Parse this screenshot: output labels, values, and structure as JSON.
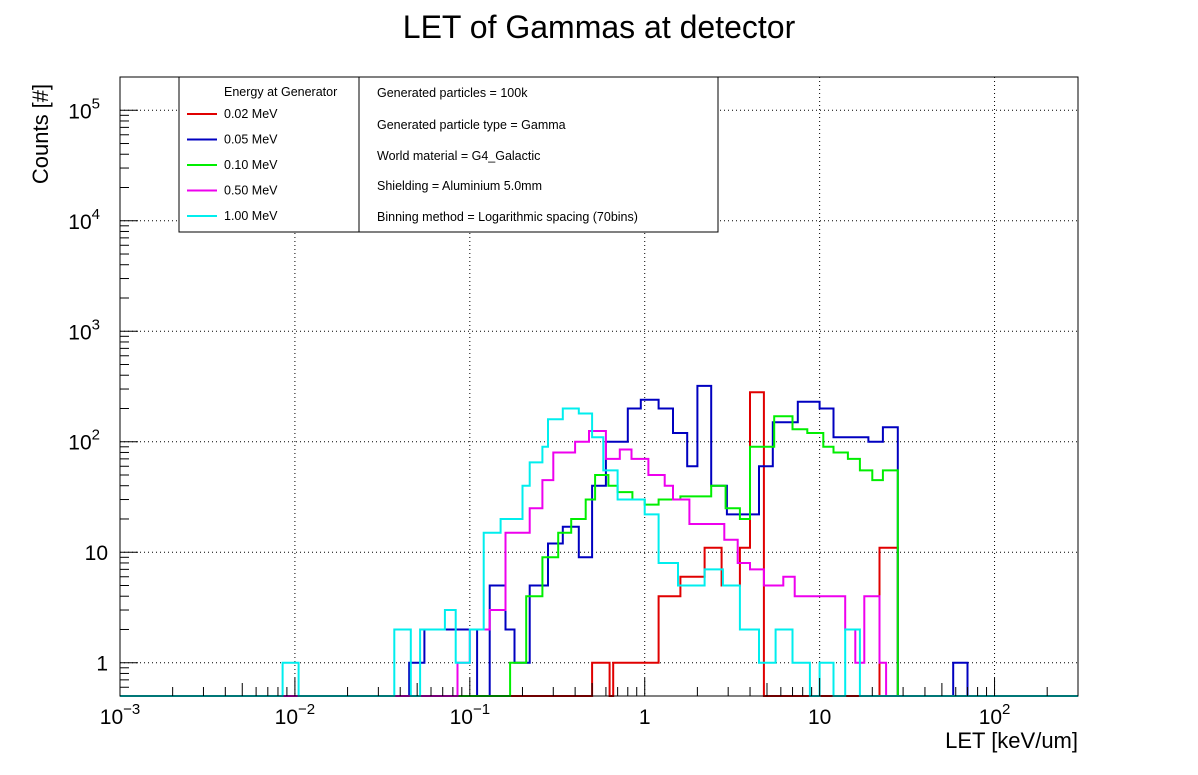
{
  "chart_data": {
    "type": "histogram-step",
    "title": "LET of Gammas at detector",
    "xlabel": "LET [keV/um]",
    "ylabel": "Counts [#]",
    "x_scale": "log",
    "y_scale": "log",
    "xlim": [
      0.001,
      300
    ],
    "ylim": [
      0.5,
      200000
    ],
    "grid": true,
    "x_major_ticks": [
      {
        "v": 0.001,
        "base": "10",
        "exp": "−3"
      },
      {
        "v": 0.01,
        "base": "10",
        "exp": "−2"
      },
      {
        "v": 0.1,
        "base": "10",
        "exp": "−1"
      },
      {
        "v": 1,
        "base": "1",
        "exp": ""
      },
      {
        "v": 10,
        "base": "10",
        "exp": ""
      },
      {
        "v": 100,
        "base": "10",
        "exp": "2"
      }
    ],
    "y_major_ticks": [
      {
        "v": 1,
        "base": "1",
        "exp": ""
      },
      {
        "v": 10,
        "base": "10",
        "exp": ""
      },
      {
        "v": 100,
        "base": "10",
        "exp": "2"
      },
      {
        "v": 1000,
        "base": "10",
        "exp": "3"
      },
      {
        "v": 10000,
        "base": "10",
        "exp": "4"
      },
      {
        "v": 100000,
        "base": "10",
        "exp": "5"
      }
    ],
    "legend_header": "Energy at Generator",
    "legend_position": "top-left",
    "info_lines": [
      "Generated particles = 100k",
      "Generated particle type = Gamma",
      "World material = G4_Galactic",
      "Shielding = Aluminium 5.0mm",
      "Binning method = Logarithmic spacing (70bins)"
    ],
    "bins": {
      "min": 0.001,
      "max": 300,
      "count": 70
    },
    "series": [
      {
        "name": "0.02 MeV",
        "color": "#e00000",
        "points": [
          [
            0.5,
            1
          ],
          [
            0.63,
            0
          ],
          [
            0.66,
            1
          ],
          [
            1.2,
            4
          ],
          [
            1.6,
            6
          ],
          [
            2.2,
            11
          ],
          [
            2.75,
            5
          ],
          [
            3.5,
            11
          ],
          [
            4.0,
            280
          ],
          [
            4.8,
            0
          ],
          [
            15.5,
            0
          ],
          [
            22,
            11
          ],
          [
            28,
            0
          ]
        ]
      },
      {
        "name": "0.05 MeV",
        "color": "#0000c0",
        "points": [
          [
            0.045,
            1
          ],
          [
            0.055,
            2
          ],
          [
            0.11,
            0
          ],
          [
            0.13,
            5
          ],
          [
            0.16,
            2
          ],
          [
            0.18,
            1
          ],
          [
            0.22,
            5
          ],
          [
            0.28,
            12
          ],
          [
            0.34,
            17
          ],
          [
            0.42,
            9
          ],
          [
            0.5,
            40
          ],
          [
            0.6,
            100
          ],
          [
            0.7,
            100
          ],
          [
            0.8,
            200
          ],
          [
            0.95,
            240
          ],
          [
            1.2,
            200
          ],
          [
            1.45,
            120
          ],
          [
            1.75,
            60
          ],
          [
            2.0,
            320
          ],
          [
            2.4,
            40
          ],
          [
            2.95,
            22
          ],
          [
            4.5,
            60
          ],
          [
            5.4,
            150
          ],
          [
            7.5,
            230
          ],
          [
            10,
            200
          ],
          [
            12,
            110
          ],
          [
            15,
            110
          ],
          [
            19,
            100
          ],
          [
            23,
            135
          ],
          [
            28,
            0
          ],
          [
            58,
            1
          ],
          [
            70,
            0
          ]
        ]
      },
      {
        "name": "0.10 MeV",
        "color": "#00ee00",
        "points": [
          [
            0.17,
            1
          ],
          [
            0.21,
            4
          ],
          [
            0.26,
            9
          ],
          [
            0.32,
            15
          ],
          [
            0.38,
            20
          ],
          [
            0.46,
            30
          ],
          [
            0.52,
            50
          ],
          [
            0.62,
            40
          ],
          [
            0.7,
            35
          ],
          [
            0.85,
            30
          ],
          [
            1.0,
            27
          ],
          [
            1.2,
            30
          ],
          [
            1.6,
            32
          ],
          [
            2.4,
            40
          ],
          [
            2.9,
            25
          ],
          [
            3.5,
            20
          ],
          [
            4.0,
            90
          ],
          [
            5.5,
            170
          ],
          [
            7.0,
            130
          ],
          [
            8.5,
            120
          ],
          [
            10.5,
            90
          ],
          [
            12,
            80
          ],
          [
            14.5,
            70
          ],
          [
            17,
            55
          ],
          [
            20,
            45
          ],
          [
            23,
            55
          ],
          [
            28,
            0
          ]
        ]
      },
      {
        "name": "0.50 MeV",
        "color": "#ee00ee",
        "points": [
          [
            0.085,
            1
          ],
          [
            0.1,
            2
          ],
          [
            0.13,
            3
          ],
          [
            0.16,
            15
          ],
          [
            0.22,
            25
          ],
          [
            0.26,
            45
          ],
          [
            0.3,
            80
          ],
          [
            0.4,
            100
          ],
          [
            0.48,
            125
          ],
          [
            0.6,
            70
          ],
          [
            0.72,
            85
          ],
          [
            0.84,
            70
          ],
          [
            1.05,
            50
          ],
          [
            1.3,
            40
          ],
          [
            1.45,
            30
          ],
          [
            1.8,
            18
          ],
          [
            2.4,
            18
          ],
          [
            2.85,
            13
          ],
          [
            3.4,
            8
          ],
          [
            4.0,
            7
          ],
          [
            4.8,
            5
          ],
          [
            6.2,
            6
          ],
          [
            7.2,
            4
          ],
          [
            9,
            4
          ],
          [
            11,
            4
          ],
          [
            14,
            2
          ],
          [
            16,
            1
          ],
          [
            18,
            4
          ],
          [
            22,
            1
          ],
          [
            24,
            0
          ]
        ]
      },
      {
        "name": "1.00 MeV",
        "color": "#00eeee",
        "points": [
          [
            0.0085,
            1
          ],
          [
            0.0105,
            0
          ],
          [
            0.037,
            2
          ],
          [
            0.046,
            0
          ],
          [
            0.052,
            2
          ],
          [
            0.072,
            3
          ],
          [
            0.083,
            1
          ],
          [
            0.1,
            2
          ],
          [
            0.12,
            15
          ],
          [
            0.15,
            20
          ],
          [
            0.2,
            40
          ],
          [
            0.22,
            65
          ],
          [
            0.26,
            90
          ],
          [
            0.28,
            160
          ],
          [
            0.34,
            200
          ],
          [
            0.42,
            180
          ],
          [
            0.5,
            110
          ],
          [
            0.58,
            55
          ],
          [
            0.7,
            30
          ],
          [
            1.0,
            22
          ],
          [
            1.2,
            8
          ],
          [
            1.55,
            5
          ],
          [
            1.9,
            5
          ],
          [
            2.2,
            7
          ],
          [
            2.8,
            5
          ],
          [
            3.5,
            2
          ],
          [
            4.5,
            1
          ],
          [
            5.6,
            2
          ],
          [
            7.0,
            1
          ],
          [
            8.8,
            0
          ],
          [
            10,
            1
          ],
          [
            12,
            0
          ],
          [
            14,
            2
          ],
          [
            17,
            0
          ]
        ]
      }
    ]
  }
}
